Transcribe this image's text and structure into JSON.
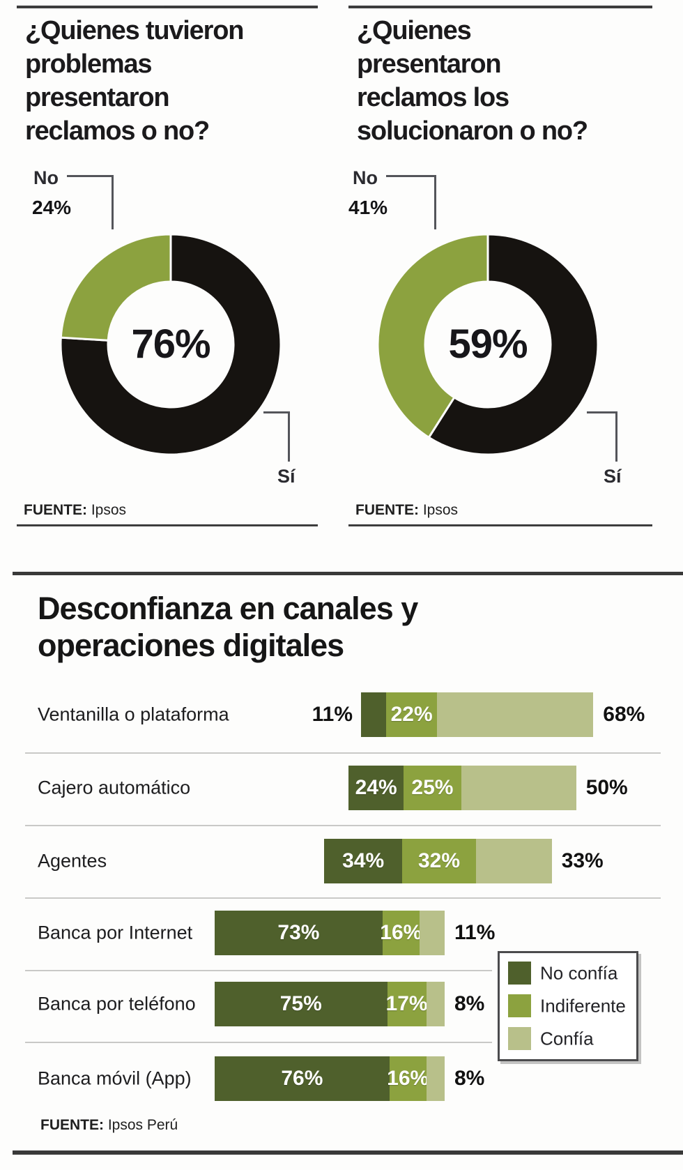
{
  "donut_charts": [
    {
      "title_lines": [
        "¿Quienes tuvieron",
        "problemas",
        "presentaron",
        "reclamos o no?"
      ],
      "center_label": "76%",
      "no_label": "No",
      "no_pct_label": "24%",
      "si_label": "Sí",
      "fuente_prefix": "FUENTE:",
      "fuente_source": "Ipsos"
    },
    {
      "title_lines": [
        "¿Quienes",
        "presentaron",
        "reclamos los",
        "solucionaron o no?"
      ],
      "center_label": "59%",
      "no_label": "No",
      "no_pct_label": "41%",
      "si_label": "Sí",
      "fuente_prefix": "FUENTE:",
      "fuente_source": "Ipsos"
    }
  ],
  "bar_section": {
    "title_lines": [
      "Desconfianza en canales y",
      "operaciones digitales"
    ],
    "fuente_prefix": "FUENTE:",
    "fuente_source": "Ipsos Perú",
    "legend": [
      {
        "label": "No confía",
        "color": "#4f602c"
      },
      {
        "label": "Indiferente",
        "color": "#8ca23f"
      },
      {
        "label": "Confía",
        "color": "#b8c08a"
      }
    ]
  },
  "colors": {
    "ink": "#1b1a1c",
    "donut_si": "#161310",
    "donut_no": "#8ca23f",
    "dark_green": "#4f602c",
    "mid_green": "#8ca23f",
    "light_green": "#b8c08a",
    "leader": "#54555a",
    "rule": "#3d3d3d",
    "row_divider": "#c9c9c7"
  },
  "chart_data": [
    {
      "type": "pie",
      "subtype": "donut",
      "title": "¿Quienes tuvieron problemas presentaron reclamos o no?",
      "labels": [
        "Sí",
        "No"
      ],
      "values": [
        76,
        24
      ],
      "colors": [
        "#161310",
        "#8ca23f"
      ],
      "center_label": "76%",
      "source": "Ipsos"
    },
    {
      "type": "pie",
      "subtype": "donut",
      "title": "¿Quienes presentaron reclamos los solucionaron o no?",
      "labels": [
        "Sí",
        "No"
      ],
      "values": [
        59,
        41
      ],
      "colors": [
        "#161310",
        "#8ca23f"
      ],
      "center_label": "59%",
      "source": "Ipsos"
    },
    {
      "type": "bar",
      "orientation": "horizontal",
      "stacked": true,
      "title": "Desconfianza en canales y operaciones digitales",
      "categories": [
        "Ventanilla o plataforma",
        "Cajero automático",
        "Agentes",
        "Banca por Internet",
        "Banca por teléfono",
        "Banca móvil (App)"
      ],
      "series": [
        {
          "name": "No confía",
          "color": "#4f602c",
          "values": [
            11,
            24,
            34,
            73,
            75,
            76
          ]
        },
        {
          "name": "Indiferente",
          "color": "#8ca23f",
          "values": [
            22,
            25,
            32,
            16,
            17,
            16
          ]
        },
        {
          "name": "Confía",
          "color": "#b8c08a",
          "values": [
            68,
            50,
            33,
            11,
            8,
            8
          ]
        }
      ],
      "value_suffix": "%",
      "legend_position": "right",
      "source": "Ipsos Perú"
    }
  ]
}
